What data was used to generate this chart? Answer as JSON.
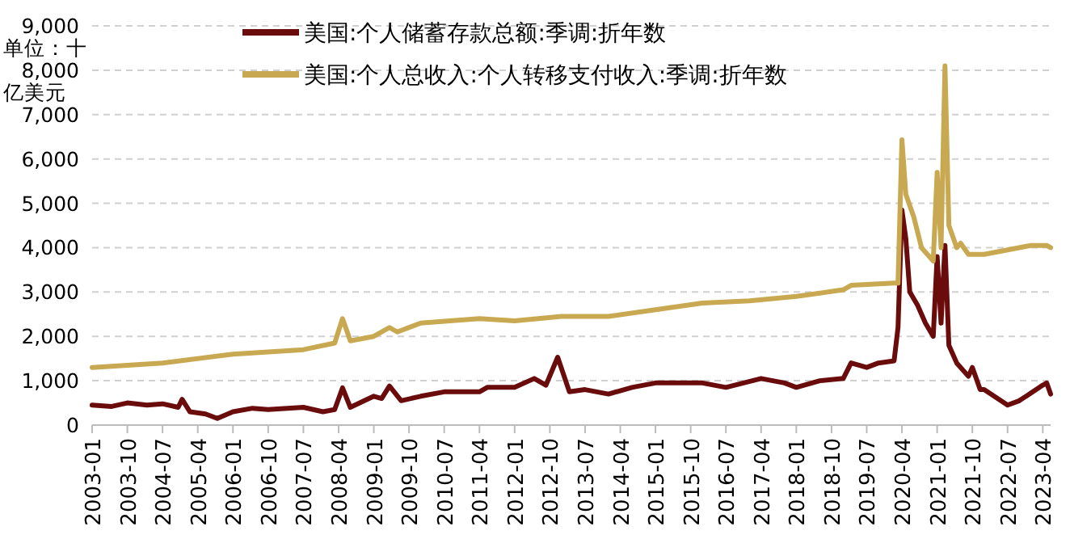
{
  "chart_data": {
    "type": "line",
    "ylabel": "单位：十亿美元",
    "legend": "top left",
    "grid": "y",
    "line_style": "solid",
    "xlim": [
      "2003-01",
      "2023-06"
    ],
    "xticks": [
      "2003-01",
      "2003-10",
      "2004-07",
      "2005-04",
      "2006-01",
      "2006-10",
      "2007-07",
      "2008-04",
      "2009-01",
      "2009-10",
      "2010-07",
      "2011-04",
      "2012-01",
      "2012-10",
      "2013-07",
      "2014-04",
      "2015-01",
      "2015-10",
      "2016-07",
      "2017-04",
      "2018-01",
      "2018-10",
      "2019-07",
      "2020-04",
      "2021-01",
      "2021-10",
      "2022-07",
      "2023-04"
    ],
    "ylim": [
      0,
      9000
    ],
    "yticks": [
      {
        "value": 0,
        "label": "0"
      },
      {
        "value": 1000,
        "label": "1,000"
      },
      {
        "value": 2000,
        "label": "2,000"
      },
      {
        "value": 3000,
        "label": "3,000"
      },
      {
        "value": 4000,
        "label": "4,000"
      },
      {
        "value": 5000,
        "label": "5,000"
      },
      {
        "value": 6000,
        "label": "6,000"
      },
      {
        "value": 7000,
        "label": "7,000"
      },
      {
        "value": 8000,
        "label": "8,000"
      },
      {
        "value": 9000,
        "label": "9,000"
      }
    ],
    "series": [
      {
        "name": "美国:个人储蓄存款总额:季调:折年数",
        "color": "#6b0c0c",
        "x": [
          "2003-01",
          "2003-06",
          "2003-10",
          "2004-03",
          "2004-07",
          "2004-11",
          "2004-12",
          "2005-02",
          "2005-06",
          "2005-09",
          "2006-01",
          "2006-06",
          "2006-10",
          "2007-07",
          "2007-12",
          "2008-03",
          "2008-05",
          "2008-07",
          "2009-01",
          "2009-03",
          "2009-05",
          "2009-08",
          "2010-01",
          "2010-07",
          "2011-04",
          "2011-06",
          "2012-01",
          "2012-06",
          "2012-09",
          "2012-12",
          "2013-03",
          "2013-07",
          "2014-01",
          "2014-07",
          "2015-01",
          "2015-07",
          "2016-01",
          "2016-07",
          "2017-04",
          "2017-10",
          "2018-01",
          "2018-07",
          "2019-01",
          "2019-03",
          "2019-07",
          "2019-10",
          "2020-02",
          "2020-03",
          "2020-04",
          "2020-05",
          "2020-06",
          "2020-08",
          "2020-10",
          "2020-12",
          "2021-01",
          "2021-02",
          "2021-03",
          "2021-04",
          "2021-06",
          "2021-09",
          "2021-10",
          "2021-12",
          "2022-01",
          "2022-07",
          "2022-10",
          "2023-04",
          "2023-05",
          "2023-06"
        ],
        "values": [
          450,
          420,
          500,
          450,
          480,
          400,
          580,
          300,
          250,
          150,
          300,
          380,
          350,
          400,
          300,
          350,
          840,
          400,
          650,
          600,
          880,
          550,
          650,
          750,
          750,
          850,
          850,
          1050,
          900,
          1530,
          750,
          800,
          700,
          850,
          950,
          950,
          950,
          850,
          1050,
          950,
          850,
          1000,
          1050,
          1400,
          1300,
          1400,
          1450,
          2200,
          4850,
          4200,
          3000,
          2700,
          2300,
          2000,
          3800,
          2300,
          4050,
          1800,
          1400,
          1100,
          1300,
          800,
          800,
          450,
          550,
          900,
          950,
          700
        ]
      },
      {
        "name": "美国:个人总收入:个人转移支付收入:季调:折年数",
        "color": "#c8a951",
        "x": [
          "2003-01",
          "2004-07",
          "2006-01",
          "2007-07",
          "2008-03",
          "2008-05",
          "2008-07",
          "2009-01",
          "2009-05",
          "2009-07",
          "2010-01",
          "2011-04",
          "2012-01",
          "2013-01",
          "2014-01",
          "2015-01",
          "2016-01",
          "2017-01",
          "2018-01",
          "2019-01",
          "2019-03",
          "2020-02",
          "2020-03",
          "2020-04",
          "2020-05",
          "2020-07",
          "2020-09",
          "2020-12",
          "2021-01",
          "2021-02",
          "2021-03",
          "2021-04",
          "2021-06",
          "2021-07",
          "2021-09",
          "2022-01",
          "2022-07",
          "2023-01",
          "2023-05",
          "2023-06"
        ],
        "values": [
          1300,
          1400,
          1600,
          1700,
          1850,
          2400,
          1900,
          2000,
          2200,
          2100,
          2300,
          2400,
          2350,
          2450,
          2450,
          2600,
          2750,
          2800,
          2900,
          3050,
          3150,
          3200,
          3200,
          6430,
          5200,
          4700,
          4000,
          3700,
          5700,
          4000,
          8100,
          4500,
          4000,
          4100,
          3850,
          3850,
          3950,
          4050,
          4050,
          4000
        ]
      }
    ]
  }
}
